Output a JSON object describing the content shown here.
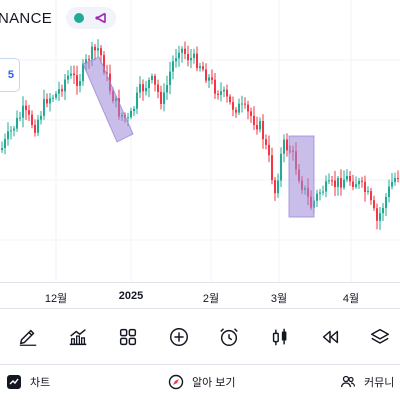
{
  "header": {
    "symbol_name": "NANCE",
    "price_box_text": "5"
  },
  "time_axis": {
    "ticks": [
      {
        "label": "12월",
        "bold": false
      },
      {
        "label": "2025",
        "bold": true
      },
      {
        "label": "2월",
        "bold": false
      },
      {
        "label": "3월",
        "bold": false
      },
      {
        "label": "4월",
        "bold": false
      }
    ]
  },
  "toolbar": {
    "tools": [
      {
        "name": "brush-icon"
      },
      {
        "name": "indicators-icon"
      },
      {
        "name": "layouts-grid-icon"
      },
      {
        "name": "add-circle-icon"
      },
      {
        "name": "alarm-clock-icon"
      },
      {
        "name": "candles-icon"
      },
      {
        "name": "replay-rewind-icon"
      },
      {
        "name": "layers-icon"
      }
    ]
  },
  "bottom_bar": {
    "chart_label": "차트",
    "ideas_label": "알아 보기",
    "community_label": "커뮤니"
  },
  "colors": {
    "up": "#22ab94",
    "down": "#f23645",
    "highlight": "#9c88d8",
    "grid": "#f0f3fa",
    "accent": "#2962ff"
  },
  "chart_data": {
    "type": "candlestick",
    "y_axis_visible": false,
    "grid": true,
    "highlight_rectangles": 2
  }
}
